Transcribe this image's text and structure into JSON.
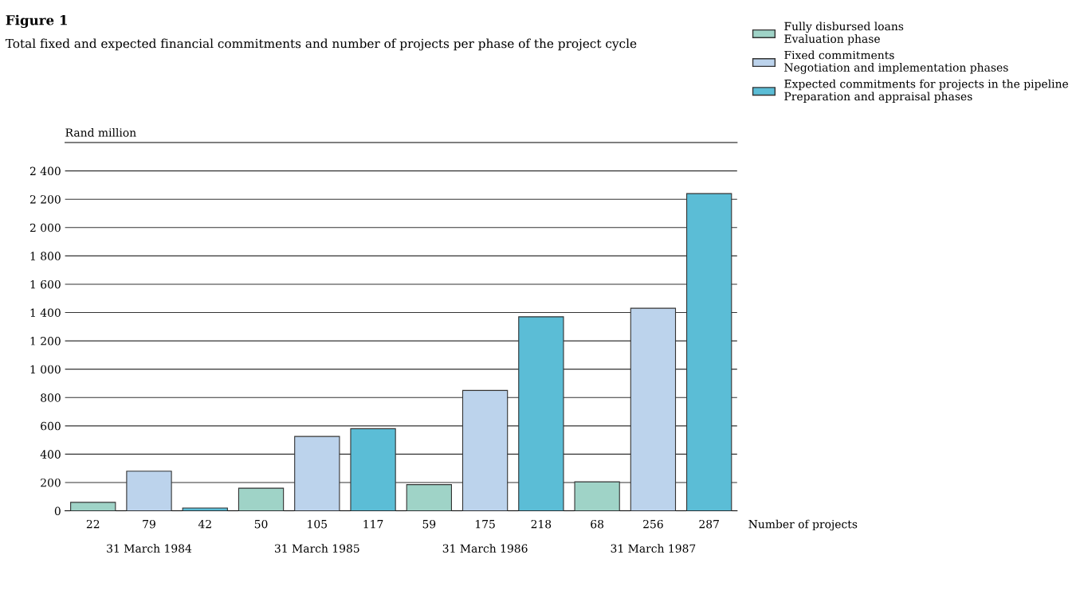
{
  "chart_data": {
    "type": "bar",
    "title": "Figure 1",
    "subtitle": "Total fixed and expected financial commitments and number of projects per phase of the project cycle",
    "ylabel": "Rand million",
    "xlabel": "Number of projects",
    "categories": [
      "22",
      "79",
      "42",
      "50",
      "105",
      "117",
      "59",
      "175",
      "218",
      "68",
      "256",
      "287"
    ],
    "series": [
      {
        "name": "Fully disbursed loans\nEvaluation phase",
        "color": "#9fd3c7",
        "values": [
          60,
          null,
          null,
          160,
          null,
          null,
          185,
          null,
          null,
          205,
          null,
          null
        ]
      },
      {
        "name": "Fixed commitments\nNegotiation and implementation phases",
        "color": "#bcd3ec",
        "values": [
          null,
          280,
          null,
          null,
          525,
          null,
          null,
          850,
          null,
          null,
          1430,
          null
        ]
      },
      {
        "name": "Expected commitments for projects in the pipeline\nPreparation and appraisal phases",
        "color": "#5bbdd6",
        "values": [
          null,
          null,
          20,
          null,
          null,
          580,
          null,
          null,
          1370,
          null,
          null,
          2240
        ]
      }
    ],
    "ylim": [
      0,
      2600
    ],
    "yticks": [
      0,
      200,
      400,
      600,
      800,
      {
        "value": 1000,
        "label": "1 000"
      },
      {
        "value": 1200,
        "label": "1 200"
      },
      {
        "value": 1400,
        "label": "1 400"
      },
      {
        "value": 1600,
        "label": "1 600"
      },
      {
        "value": 1800,
        "label": "1 800"
      },
      {
        "value": 2000,
        "label": "2 000"
      },
      {
        "value": 2200,
        "label": "2 200"
      },
      {
        "value": 2400,
        "label": "2 400"
      }
    ],
    "grid": "y",
    "legend": "top right",
    "annotations": [
      "31 March 1984",
      "31 March 1985",
      "31 March 1986",
      "31 March 1987"
    ]
  }
}
